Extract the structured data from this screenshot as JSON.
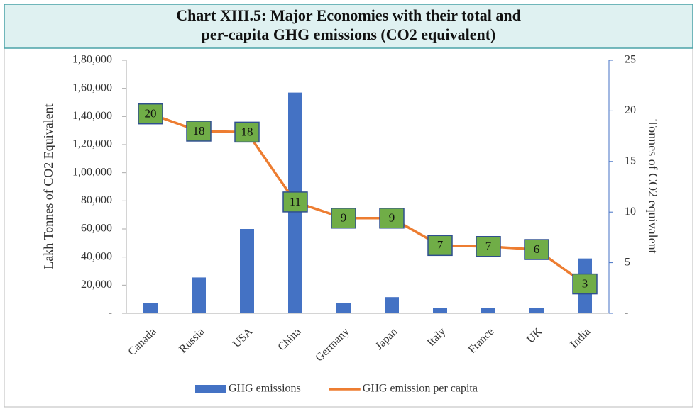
{
  "chart_data": {
    "type": "bar-line",
    "title": [
      "Chart XIII.5: Major Economies with their total and",
      "per-capita GHG emissions (CO2 equivalent)"
    ],
    "categories": [
      "Canada",
      "Russia",
      "USA",
      "China",
      "Germany",
      "Japan",
      "Italy",
      "France",
      "UK",
      "India"
    ],
    "series": [
      {
        "name": "GHG emissions",
        "type": "bar",
        "color": "#4472c4",
        "axis": "y",
        "values": [
          7500,
          25500,
          60000,
          157000,
          7500,
          11500,
          4000,
          4000,
          4000,
          39000
        ]
      },
      {
        "name": "GHG emission per capita",
        "type": "line",
        "color": "#ed7d31",
        "axis": "y2",
        "values": [
          19.7,
          18,
          17.9,
          11,
          9.4,
          9.4,
          6.7,
          6.6,
          6.3,
          2.9
        ],
        "value_labels": [
          "20",
          "18",
          "18",
          "11",
          "9",
          "9",
          "7",
          "7",
          "6",
          "3"
        ]
      }
    ],
    "ylabel": "Lakh Tonnes of CO2 Equivalent",
    "y2label": "Tonnes of CO2 equivalent",
    "ylim": [
      0,
      180000
    ],
    "yticks": [
      {
        "value": 0,
        "label": "-"
      },
      {
        "value": 20000,
        "label": "20,000"
      },
      {
        "value": 40000,
        "label": "40,000"
      },
      {
        "value": 60000,
        "label": "60,000"
      },
      {
        "value": 80000,
        "label": "80,000"
      },
      {
        "value": 100000,
        "label": "1,00,000"
      },
      {
        "value": 120000,
        "label": "1,20,000"
      },
      {
        "value": 140000,
        "label": "1,40,000"
      },
      {
        "value": 160000,
        "label": "1,60,000"
      },
      {
        "value": 180000,
        "label": "1,80,000"
      }
    ],
    "y2lim": [
      0,
      25
    ],
    "y2ticks": [
      {
        "value": 0,
        "label": "-"
      },
      5,
      10,
      15,
      20,
      25
    ]
  }
}
